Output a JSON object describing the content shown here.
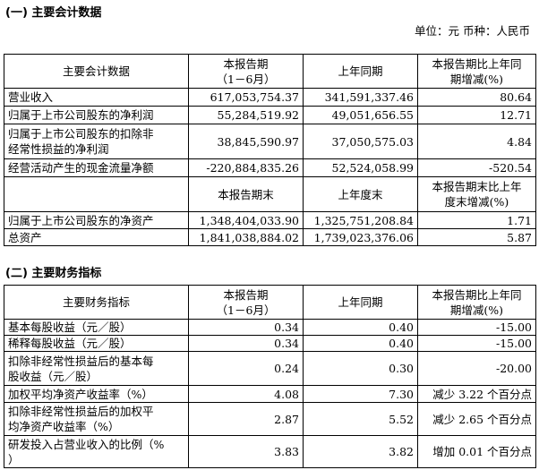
{
  "section1": {
    "title": "(一) 主要会计数据",
    "unit": "单位：元  币种：人民币",
    "table": {
      "header": [
        "主要会计数据",
        [
          "本报告期",
          "（1－6月）"
        ],
        "上年同期",
        [
          "本报告期比上年同",
          "期增减(%)"
        ]
      ],
      "rows": [
        [
          "营业收入",
          "617,053,754.37",
          "341,591,337.46",
          "80.64"
        ],
        [
          "归属于上市公司股东的净利润",
          "55,284,519.92",
          "49,051,656.55",
          "12.71"
        ],
        [
          [
            "归属于上市公司股东的扣除非",
            "经常性损益的净利润"
          ],
          "38,845,590.97",
          "37,050,575.03",
          "4.84"
        ],
        [
          "经营活动产生的现金流量净额",
          "-220,884,835.26",
          "52,524,058.99",
          "-520.54"
        ]
      ],
      "header2": [
        "本报告期末",
        "上年度末",
        [
          "本报告期末比上年",
          "度末增减(%)"
        ]
      ],
      "rows2": [
        [
          "归属于上市公司股东的净资产",
          "1,348,404,033.90",
          "1,325,751,208.84",
          "1.71"
        ],
        [
          "总资产",
          "1,841,038,884.02",
          "1,739,023,376.06",
          "5.87"
        ]
      ]
    }
  },
  "section2": {
    "title": "(二) 主要财务指标",
    "table": {
      "header": [
        "主要财务指标",
        [
          "本报告期",
          "（1－6月）"
        ],
        "上年同期",
        [
          "本报告期比上年同",
          "期增减(%)"
        ]
      ],
      "rows": [
        [
          "基本每股收益（元／股）",
          "0.34",
          "0.40",
          "-15.00"
        ],
        [
          "稀释每股收益（元／股）",
          "0.34",
          "0.40",
          "-15.00"
        ],
        [
          [
            "扣除非经常性损益后的基本每",
            "股收益（元／股）"
          ],
          "0.24",
          "0.30",
          "-20.00"
        ],
        [
          "加权平均净资产收益率（%）",
          "4.08",
          "7.30",
          "减少 3.22 个百分点"
        ],
        [
          [
            "扣除非经常性损益后的加权平",
            "均净资产收益率（%）"
          ],
          "2.87",
          "5.52",
          "减少 2.65 个百分点"
        ],
        [
          [
            "研发投入占营业收入的比例（%",
            "）"
          ],
          "3.83",
          "3.82",
          "增加 0.01 个百分点"
        ]
      ]
    }
  }
}
